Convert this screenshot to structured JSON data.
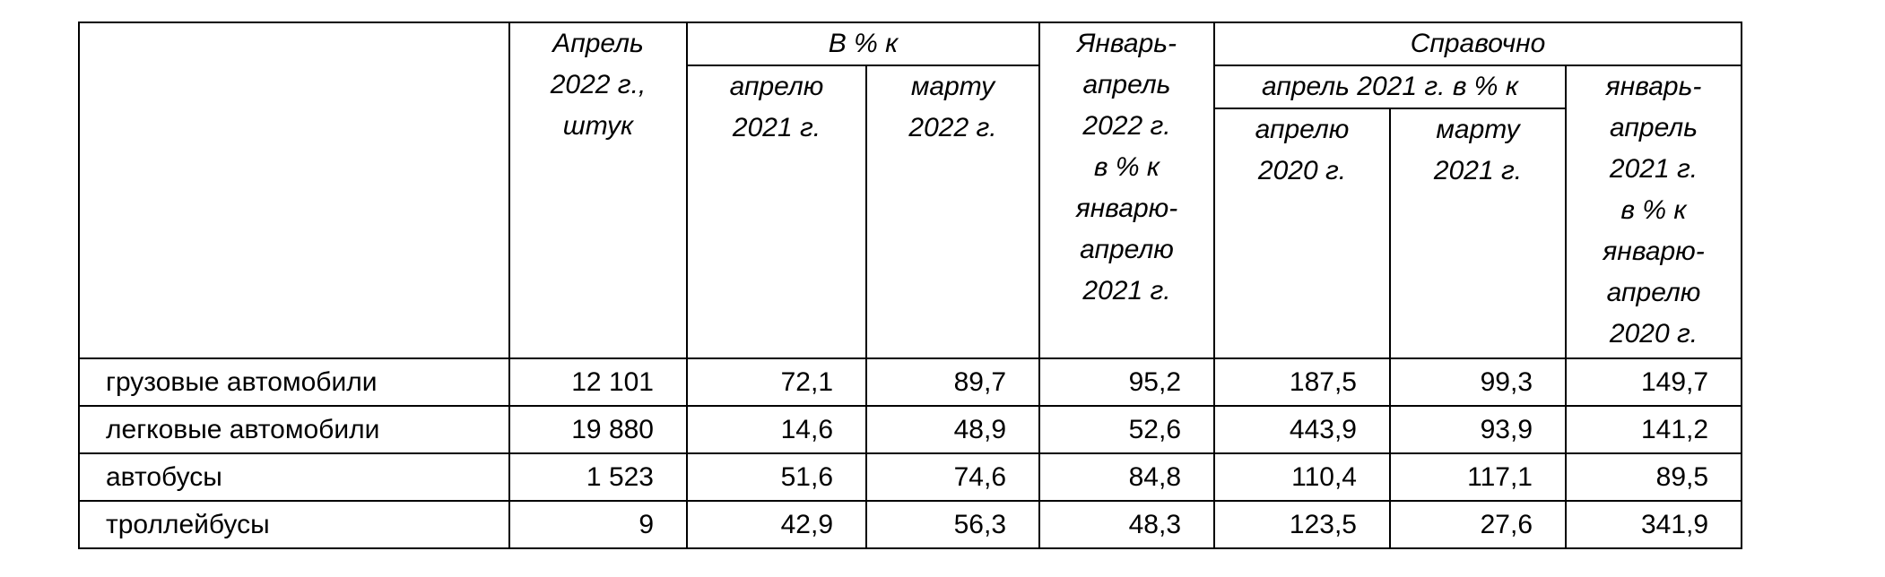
{
  "table": {
    "header": {
      "april_2022": "Апрель\n2022 г.,\nштук",
      "pct_to": "В % к",
      "to_april_2021": "апрелю\n2021 г.",
      "to_march_2022": "марту\n2022 г.",
      "jan_apr_2022": "Январь-\nапрель\n2022 г.\nв % к\nянварю-\nапрелю\n2021 г.",
      "reference": "Справочно",
      "apr_2021_pct": "апрель 2021 г. в % к",
      "to_april_2020": "апрелю\n2020 г.",
      "to_march_2021": "марту\n2021 г.",
      "jan_apr_2021": "январь-\nапрель\n2021 г.\nв % к\nянварю-\nапрелю\n2020 г."
    },
    "rows": [
      [
        "грузовые автомобили",
        "12 101",
        "72,1",
        "89,7",
        "95,2",
        "187,5",
        "99,3",
        "149,7"
      ],
      [
        "легковые автомобили",
        "19 880",
        "14,6",
        "48,9",
        "52,6",
        "443,9",
        "93,9",
        "141,2"
      ],
      [
        "автобусы",
        "1 523",
        "51,6",
        "74,6",
        "84,8",
        "110,4",
        "117,1",
        "89,5"
      ],
      [
        "троллейбусы",
        "9",
        "42,9",
        "56,3",
        "48,3",
        "123,5",
        "27,6",
        "341,9"
      ]
    ]
  }
}
